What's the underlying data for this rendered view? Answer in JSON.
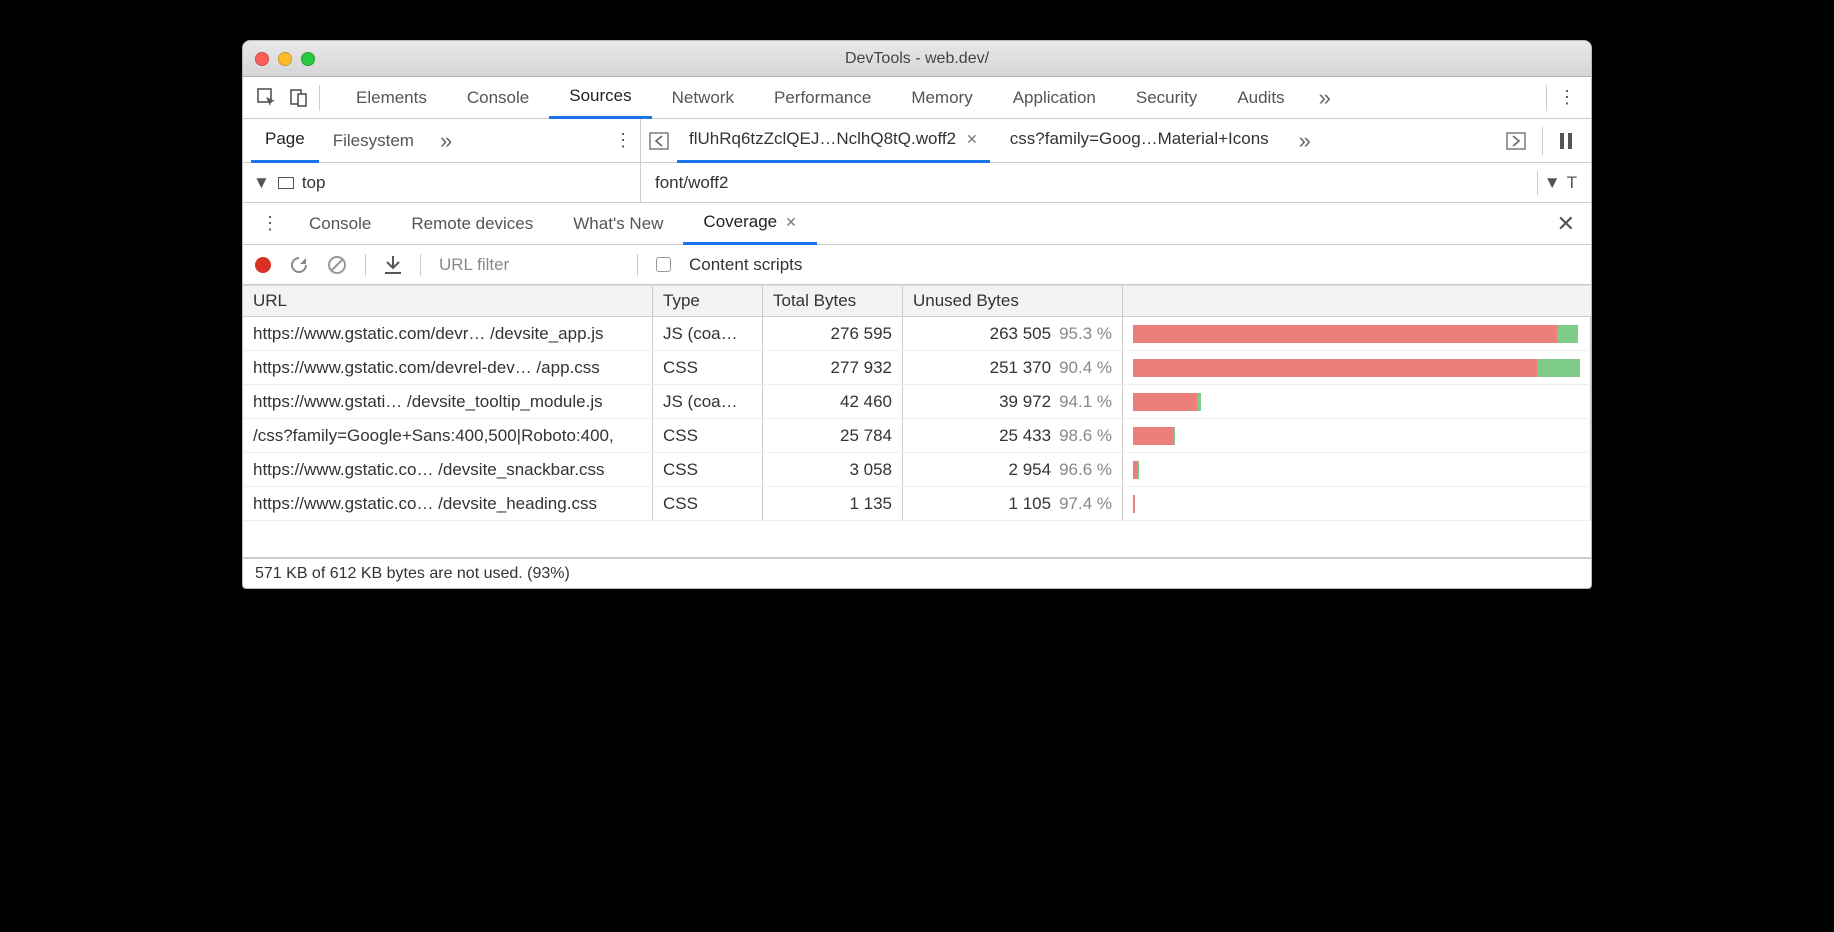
{
  "colors": {
    "accent": "#1a73e8",
    "bar_unused": "#ec7f7b",
    "bar_used": "#7fcb8a",
    "record": "#d93025"
  },
  "titlebar": {
    "title": "DevTools - web.dev/"
  },
  "main_tabs": {
    "items": [
      "Elements",
      "Console",
      "Sources",
      "Network",
      "Performance",
      "Memory",
      "Application",
      "Security",
      "Audits"
    ],
    "active_index": 2,
    "overflow_glyph": "»"
  },
  "sources_left": {
    "subtabs": [
      "Page",
      "Filesystem"
    ],
    "active_index": 0,
    "overflow_glyph": "»"
  },
  "open_files": {
    "tabs": [
      {
        "label": "flUhRq6tzZclQEJ…NclhQ8tQ.woff2",
        "closable": true
      },
      {
        "label": "css?family=Goog…Material+Icons",
        "closable": false
      }
    ],
    "active_index": 0,
    "overflow_glyph": "»"
  },
  "tree": {
    "top_label": "top",
    "content_hint": "font/woff2",
    "right_panel_hint": "T"
  },
  "drawer_tabs": {
    "items": [
      "Console",
      "Remote devices",
      "What's New",
      "Coverage"
    ],
    "active_index": 3
  },
  "coverage_toolbar": {
    "url_filter_placeholder": "URL filter",
    "content_scripts_label": "Content scripts"
  },
  "coverage_table": {
    "columns": [
      "URL",
      "Type",
      "Total Bytes",
      "Unused Bytes"
    ],
    "max_total": 277932,
    "rows": [
      {
        "url": "https://www.gstatic.com/devr… /devsite_app.js",
        "type": "JS (coa…",
        "total": "276 595",
        "total_n": 276595,
        "unused": "263 505",
        "pct": "95.3 %",
        "unused_n": 263505
      },
      {
        "url": "https://www.gstatic.com/devrel-dev… /app.css",
        "type": "CSS",
        "total": "277 932",
        "total_n": 277932,
        "unused": "251 370",
        "pct": "90.4 %",
        "unused_n": 251370
      },
      {
        "url": "https://www.gstati… /devsite_tooltip_module.js",
        "type": "JS (coa…",
        "total": "42 460",
        "total_n": 42460,
        "unused": "39 972",
        "pct": "94.1 %",
        "unused_n": 39972
      },
      {
        "url": "/css?family=Google+Sans:400,500|Roboto:400,",
        "type": "CSS",
        "total": "25 784",
        "total_n": 25784,
        "unused": "25 433",
        "pct": "98.6 %",
        "unused_n": 25433
      },
      {
        "url": "https://www.gstatic.co… /devsite_snackbar.css",
        "type": "CSS",
        "total": "3 058",
        "total_n": 3058,
        "unused": "2 954",
        "pct": "96.6 %",
        "unused_n": 2954
      },
      {
        "url": "https://www.gstatic.co…  /devsite_heading.css",
        "type": "CSS",
        "total": "1 135",
        "total_n": 1135,
        "unused": "1 105",
        "pct": "97.4 %",
        "unused_n": 1105
      }
    ]
  },
  "status_bar": {
    "text": "571 KB of 612 KB bytes are not used. (93%)"
  }
}
